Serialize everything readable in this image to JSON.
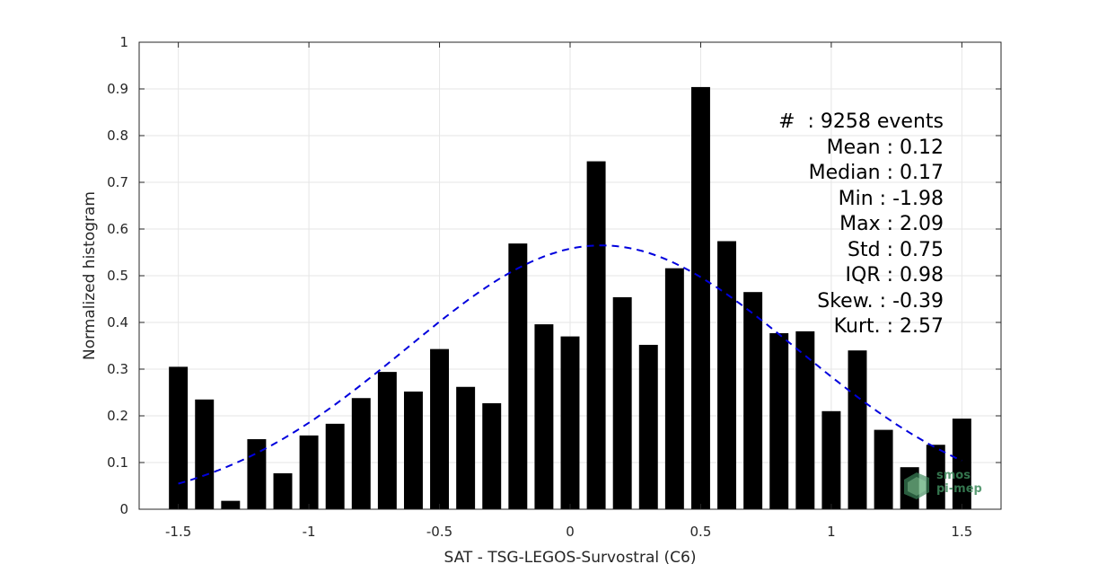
{
  "chart_data": {
    "type": "bar",
    "xlabel": "SAT - TSG-LEGOS-Survostral (C6)",
    "ylabel": "Normalized histogram",
    "xlim": [
      -1.65,
      1.65
    ],
    "ylim": [
      0,
      1
    ],
    "xticks": [
      -1.5,
      -1,
      -0.5,
      0,
      0.5,
      1,
      1.5
    ],
    "xtick_labels": [
      "-1.5",
      "-1",
      "-0.5",
      "0",
      "0.5",
      "1",
      "1.5"
    ],
    "yticks": [
      0,
      0.1,
      0.2,
      0.3,
      0.4,
      0.5,
      0.6,
      0.7,
      0.8,
      0.9,
      1
    ],
    "ytick_labels": [
      "0",
      "0.1",
      "0.2",
      "0.3",
      "0.4",
      "0.5",
      "0.6",
      "0.7",
      "0.8",
      "0.9",
      "1"
    ],
    "grid": true,
    "bin_width": 0.1,
    "x": [
      -1.5,
      -1.4,
      -1.3,
      -1.2,
      -1.1,
      -1.0,
      -0.9,
      -0.8,
      -0.7,
      -0.6,
      -0.5,
      -0.4,
      -0.3,
      -0.2,
      -0.1,
      0.0,
      0.1,
      0.2,
      0.3,
      0.4,
      0.5,
      0.6,
      0.7,
      0.8,
      0.9,
      1.0,
      1.1,
      1.2,
      1.3,
      1.4,
      1.5
    ],
    "values": [
      0.305,
      0.235,
      0.018,
      0.15,
      0.077,
      0.158,
      0.183,
      0.238,
      0.294,
      0.252,
      0.343,
      0.262,
      0.227,
      0.569,
      0.396,
      0.37,
      0.745,
      0.454,
      0.352,
      0.516,
      0.904,
      0.574,
      0.465,
      0.377,
      0.381,
      0.21,
      0.34,
      0.17,
      0.09,
      0.138,
      0.194
    ],
    "fit": {
      "style": "dashed",
      "color": "#0000dd",
      "x_range": [
        -1.5,
        1.5
      ],
      "mean": 0.12,
      "std": 0.75,
      "peak": 0.565
    },
    "stats": [
      {
        "label": "#  ",
        "value": ": 9258 events"
      },
      {
        "label": "Mean ",
        "value": ": 0.12"
      },
      {
        "label": "Median ",
        "value": ": 0.17"
      },
      {
        "label": "Min ",
        "value": ": -1.98"
      },
      {
        "label": "Max ",
        "value": ": 2.09"
      },
      {
        "label": "Std ",
        "value": ": 0.75"
      },
      {
        "label": "IQR ",
        "value": ": 0.98"
      },
      {
        "label": "Skew. ",
        "value": ": -0.39"
      },
      {
        "label": "Kurt. ",
        "value": ": 2.57"
      }
    ],
    "bar_color": "#000000"
  },
  "logo": {
    "line1": "smos",
    "line2": "pi-mep"
  }
}
